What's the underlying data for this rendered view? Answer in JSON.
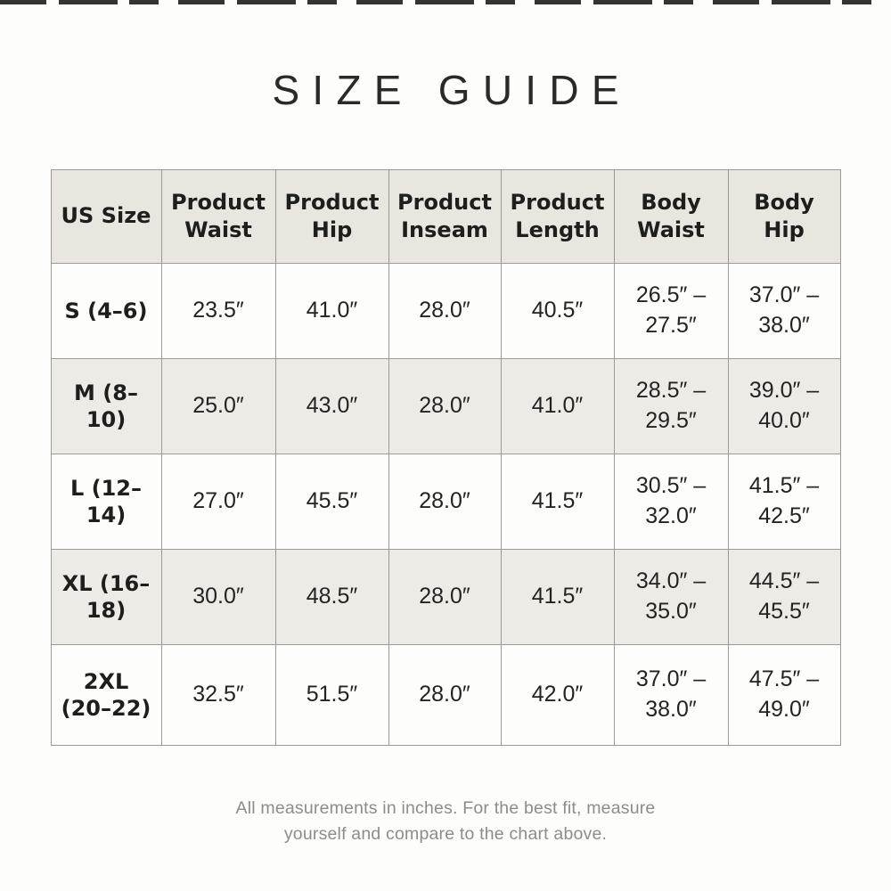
{
  "page": {
    "title": "SIZE GUIDE",
    "footnote": "All measurements in inches. For the best fit, measure\nyourself and compare to the chart above."
  },
  "table": {
    "columns": [
      "US Size",
      "Product\nWaist",
      "Product\nHip",
      "Product\nInseam",
      "Product\nLength",
      "Body\nWaist",
      "Body\nHip"
    ],
    "rows": [
      {
        "size": "S (4–6)",
        "cells": [
          "23.5″",
          "41.0″",
          "28.0″",
          "40.5″",
          "26.5″ –\n27.5″",
          "37.0″ –\n38.0″"
        ]
      },
      {
        "size": "M (8–10)",
        "cells": [
          "25.0″",
          "43.0″",
          "28.0″",
          "41.0″",
          "28.5″ –\n29.5″",
          "39.0″ –\n40.0″"
        ]
      },
      {
        "size": "L (12–14)",
        "cells": [
          "27.0″",
          "45.5″",
          "28.0″",
          "41.5″",
          "30.5″ –\n32.0″",
          "41.5″ –\n42.5″"
        ]
      },
      {
        "size": "XL (16–18)",
        "cells": [
          "30.0″",
          "48.5″",
          "28.0″",
          "41.5″",
          "34.0″ –\n35.0″",
          "44.5″ –\n45.5″"
        ]
      },
      {
        "size": "2XL\n(20–22)",
        "cells": [
          "32.5″",
          "51.5″",
          "28.0″",
          "42.0″",
          "37.0″ –\n38.0″",
          "47.5″ –\n49.0″"
        ]
      }
    ]
  },
  "colors": {
    "header_bg": "#e9e6e0",
    "alt_row_bg": "#edebe6",
    "row_bg": "#fdfdfc",
    "border": "#9c9a96",
    "title_text": "#2a2a28",
    "cell_text": "#232321",
    "footnote_text": "#8d8c8a"
  }
}
